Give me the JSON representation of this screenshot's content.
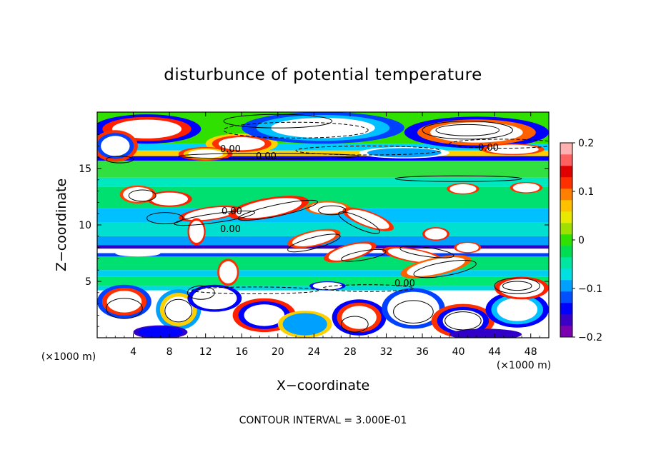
{
  "chart_data": {
    "type": "heatmap",
    "title": "disturbunce of potential temperature",
    "xlabel": "X−coordinate",
    "ylabel": "Z−coordinate",
    "x_unit_label": "(×1000 m)",
    "y_unit_label": "(×1000 m)",
    "xlim": [
      0,
      50
    ],
    "ylim": [
      0,
      20
    ],
    "xticks": [
      4,
      8,
      12,
      16,
      20,
      24,
      28,
      32,
      36,
      40,
      44,
      48
    ],
    "yticks": [
      5,
      10,
      15
    ],
    "colorbar": {
      "range": [
        -0.2,
        0.2
      ],
      "tick_values": [
        0.2,
        0.1,
        0,
        -0.1,
        -0.2
      ],
      "tick_labels": [
        "0.2",
        "0.1",
        "0",
        "−0.1",
        "−0.2"
      ],
      "colors": [
        "#7a00b0",
        "#3a00c8",
        "#0000ff",
        "#0050ff",
        "#00a0ff",
        "#00e0e0",
        "#00e8a0",
        "#00dd50",
        "#30e000",
        "#a0e000",
        "#e8e800",
        "#ffc000",
        "#ff8000",
        "#ff3000",
        "#e00000",
        "#ff6060",
        "#ffb0b0"
      ]
    },
    "contour_interval_text": "CONTOUR INTERVAL = 3.000E-01",
    "contour_labels": [
      "0.00",
      "0.00",
      "0.00",
      "0.00",
      "0.00",
      "0.00"
    ]
  }
}
